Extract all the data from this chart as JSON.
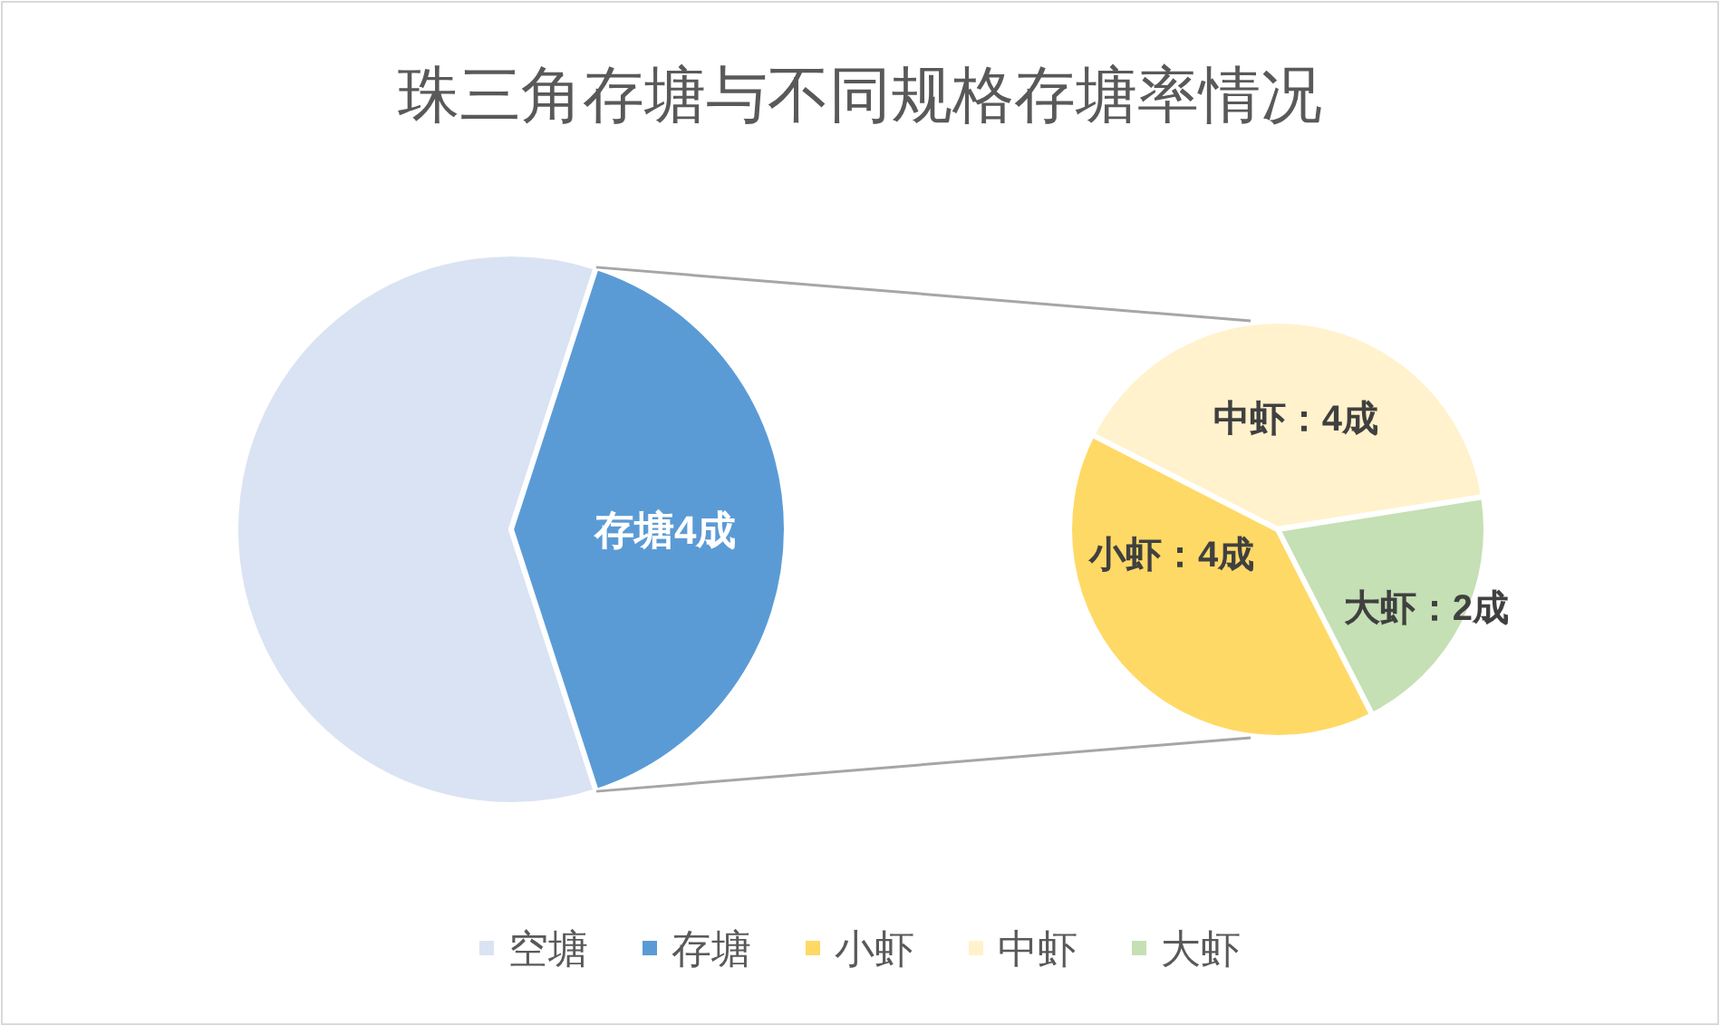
{
  "chart_data": [
    {
      "type": "pie",
      "title": "珠三角存塘与不同规格存塘率情况",
      "categories": [
        "空塘",
        "存塘"
      ],
      "values": [
        6,
        4
      ],
      "colors": [
        "#dae3f3",
        "#5b9bd5"
      ],
      "value_labels": [
        null,
        "存塘4成"
      ],
      "legend": "bottom"
    },
    {
      "type": "pie",
      "categories": [
        "小虾",
        "中虾",
        "大虾"
      ],
      "values": [
        4,
        4,
        2
      ],
      "colors": [
        "#ffd966",
        "#fff2cc",
        "#c5e0b4"
      ],
      "value_labels": [
        "小虾：4成",
        "中虾：4成",
        "大虾：2成"
      ],
      "legend": "bottom"
    }
  ]
}
